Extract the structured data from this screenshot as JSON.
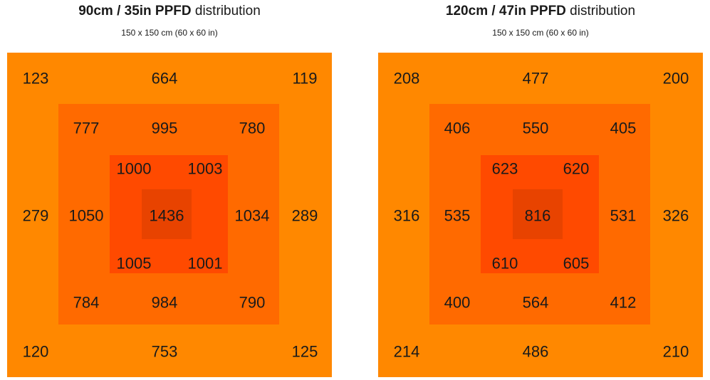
{
  "colors": {
    "zone1": "#FF8800",
    "zone2": "#FF6A00",
    "zone3": "#FF4A00",
    "zone4": "#E84300",
    "text": "#1a1a1a"
  },
  "chart_data": [
    {
      "type": "heatmap",
      "title_bold": "90cm / 35in PPFD",
      "title_rest": " distribution",
      "subtitle": "150 x 150 cm (60 x 60 in)",
      "unit": "PPFD",
      "values": {
        "outer_top": [
          123,
          664,
          119
        ],
        "outer_middle": [
          279,
          289
        ],
        "outer_bottom": [
          120,
          753,
          125
        ],
        "ring2_top": [
          777,
          995,
          780
        ],
        "ring2_middle": [
          1050,
          1034
        ],
        "ring2_bottom": [
          784,
          984,
          790
        ],
        "ring3_top": [
          1000,
          1003
        ],
        "ring3_bottom": [
          1005,
          1001
        ],
        "center": 1436
      }
    },
    {
      "type": "heatmap",
      "title_bold": "120cm / 47in PPFD",
      "title_rest": " distribution",
      "subtitle": "150 x 150 cm (60 x 60 in)",
      "unit": "PPFD",
      "values": {
        "outer_top": [
          208,
          477,
          200
        ],
        "outer_middle": [
          316,
          326
        ],
        "outer_bottom": [
          214,
          486,
          210
        ],
        "ring2_top": [
          406,
          550,
          405
        ],
        "ring2_middle": [
          535,
          531
        ],
        "ring2_bottom": [
          400,
          564,
          412
        ],
        "ring3_top": [
          623,
          620
        ],
        "ring3_bottom": [
          610,
          605
        ],
        "center": 816
      }
    }
  ]
}
